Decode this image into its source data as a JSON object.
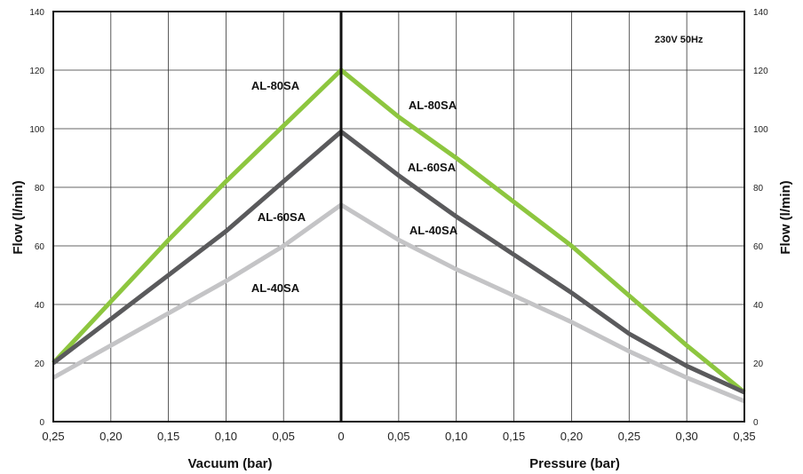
{
  "chart_data": {
    "type": "line",
    "note": "230V 50Hz",
    "ylabel": "Flow (l/min)",
    "ylim": [
      0,
      140
    ],
    "y_ticks": [
      "0",
      "20",
      "40",
      "60",
      "80",
      "100",
      "120",
      "140"
    ],
    "vacuum_axis": {
      "label": "Vacuum (bar)",
      "range": [
        0.25,
        0
      ],
      "ticks": [
        "0,25",
        "0,20",
        "0,15",
        "0,10",
        "0,05",
        "0"
      ]
    },
    "pressure_axis": {
      "label": "Pressure (bar)",
      "range": [
        0,
        0.35
      ],
      "ticks": [
        "0,05",
        "0,10",
        "0,15",
        "0,20",
        "0,25",
        "0,30",
        "0,35"
      ]
    },
    "grid": true,
    "series": [
      {
        "name": "AL-80SA",
        "color": "#8dc63f",
        "vacuum": [
          [
            0.25,
            20
          ],
          [
            0.2,
            41
          ],
          [
            0.15,
            62
          ],
          [
            0.1,
            82
          ],
          [
            0.05,
            101
          ],
          [
            0,
            120
          ]
        ],
        "pressure": [
          [
            0,
            120
          ],
          [
            0.05,
            104
          ],
          [
            0.1,
            90
          ],
          [
            0.15,
            75
          ],
          [
            0.2,
            60
          ],
          [
            0.25,
            43
          ],
          [
            0.3,
            26
          ],
          [
            0.35,
            10
          ]
        ]
      },
      {
        "name": "AL-60SA",
        "color": "#5a5a5c",
        "vacuum": [
          [
            0.25,
            20
          ],
          [
            0.2,
            35
          ],
          [
            0.15,
            50
          ],
          [
            0.1,
            65
          ],
          [
            0.05,
            82
          ],
          [
            0,
            99
          ]
        ],
        "pressure": [
          [
            0,
            99
          ],
          [
            0.05,
            84
          ],
          [
            0.1,
            70
          ],
          [
            0.15,
            57
          ],
          [
            0.2,
            44
          ],
          [
            0.25,
            30
          ],
          [
            0.3,
            19
          ],
          [
            0.35,
            10
          ]
        ]
      },
      {
        "name": "AL-40SA",
        "color": "#c4c4c6",
        "vacuum": [
          [
            0.25,
            15
          ],
          [
            0.2,
            26
          ],
          [
            0.15,
            37
          ],
          [
            0.1,
            48
          ],
          [
            0.05,
            60
          ],
          [
            0,
            74
          ]
        ],
        "pressure": [
          [
            0,
            74
          ],
          [
            0.05,
            62
          ],
          [
            0.1,
            52
          ],
          [
            0.15,
            43
          ],
          [
            0.2,
            34
          ],
          [
            0.25,
            24
          ],
          [
            0.3,
            15
          ],
          [
            0.35,
            7
          ]
        ]
      }
    ]
  }
}
